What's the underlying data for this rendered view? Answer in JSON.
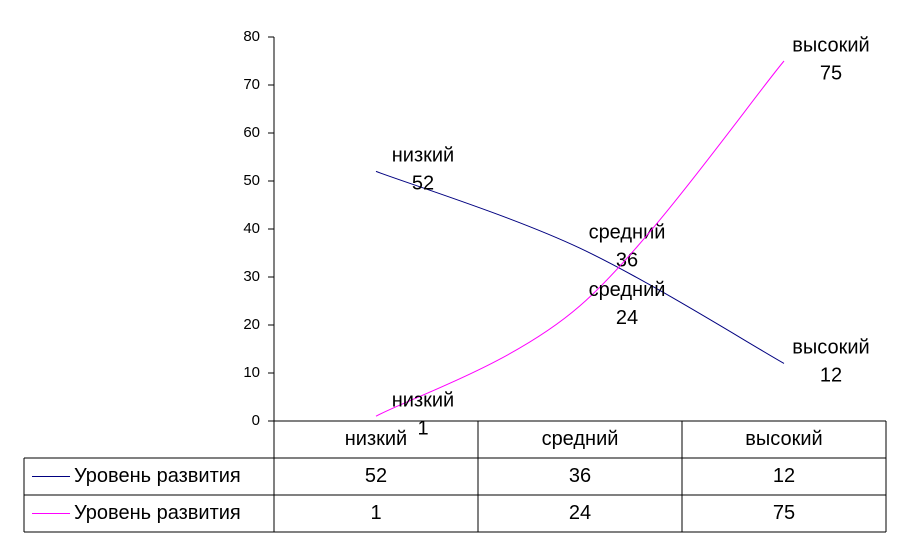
{
  "chart_data": {
    "type": "line",
    "categories": [
      "низкий",
      "средний",
      "высокий"
    ],
    "series": [
      {
        "name": "Уровень развития",
        "color": "#000080",
        "values": [
          52,
          36,
          12
        ]
      },
      {
        "name": "Уровень развития",
        "color": "#ff00ff",
        "values": [
          1,
          24,
          75
        ]
      }
    ],
    "ylim": [
      0,
      80
    ],
    "yticks": [
      0,
      10,
      20,
      30,
      40,
      50,
      60,
      70,
      80
    ]
  }
}
